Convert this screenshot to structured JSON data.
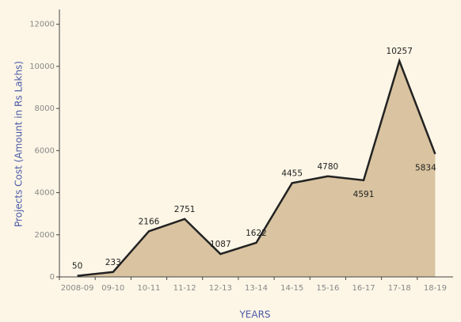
{
  "chart_data": {
    "type": "area",
    "x_label": "YEARS",
    "y_label": "Projects Cost (Amount in Rs Lakhs)",
    "categories": [
      "2008-09",
      "09-10",
      "10-11",
      "11-12",
      "12-13",
      "13-14",
      "14-15",
      "15-16",
      "16-17",
      "17-18",
      "18-19"
    ],
    "values": [
      50,
      233,
      2166,
      2751,
      1087,
      1622,
      4455,
      4780,
      4591,
      10257,
      5834
    ],
    "color": "#d9c3a0",
    "line_color": "#222222",
    "ylim": [
      0,
      12700
    ],
    "yticks": [
      0,
      2000,
      4000,
      6000,
      8000,
      10000,
      12000
    ]
  }
}
